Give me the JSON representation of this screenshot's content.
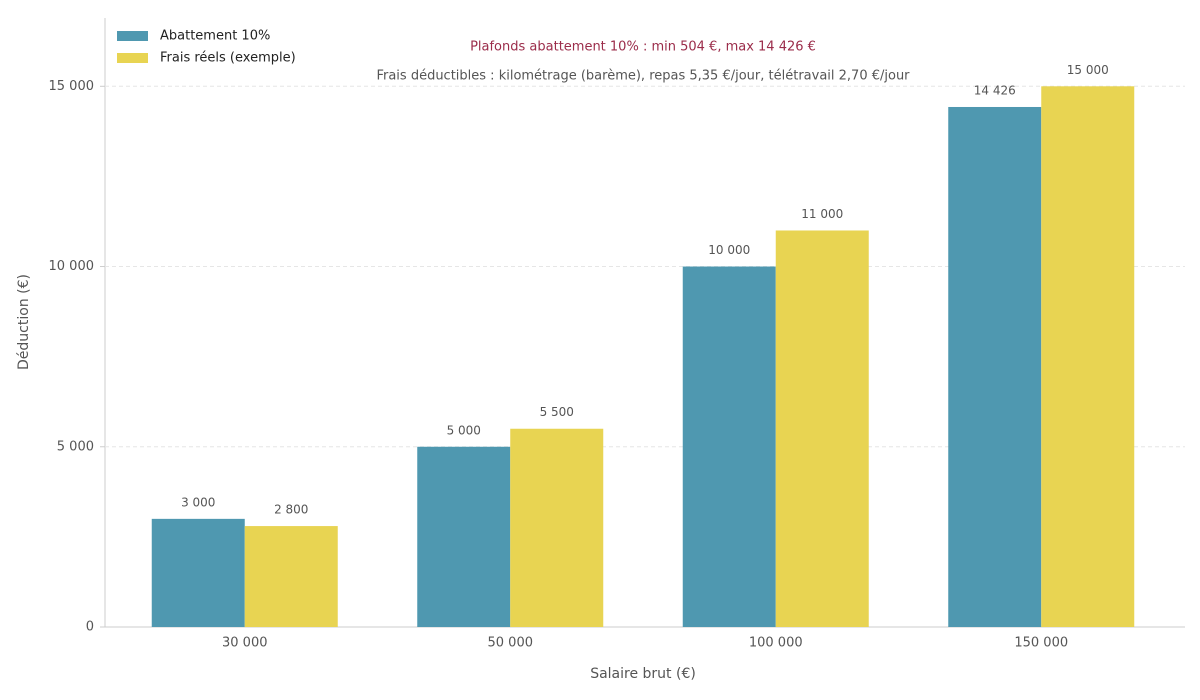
{
  "chart_data": {
    "type": "bar",
    "annotations": [
      {
        "text": "Plafonds abattement 10% : min 504 €, max 14 426 €",
        "color": "#9b2c4a"
      },
      {
        "text": "Frais déductibles : kilométrage (barème), repas 5,35 €/jour, télétravail 2,70 €/jour",
        "color": "#555555"
      }
    ],
    "x_label": "Salaire brut (€)",
    "y_label": "Déduction (€)",
    "categories": [
      "30 000",
      "50 000",
      "100 000",
      "150 000"
    ],
    "series": [
      {
        "name": "Abattement 10%",
        "color": "#4f98b0",
        "values": [
          3000,
          5000,
          10000,
          14426
        ],
        "value_labels": [
          "3 000",
          "5 000",
          "10 000",
          "14 426"
        ]
      },
      {
        "name": "Frais réels (exemple)",
        "color": "#e8d452",
        "values": [
          2800,
          5500,
          11000,
          15000
        ],
        "value_labels": [
          "2 800",
          "5 500",
          "11 000",
          "15 000"
        ]
      }
    ],
    "ylim": [
      0,
      16950
    ],
    "yticks": [
      0,
      {
        "value": 5000,
        "label": "5 000"
      },
      {
        "value": 10000,
        "label": "10 000"
      },
      {
        "value": 15000,
        "label": "15 000"
      }
    ],
    "grid": true,
    "legend": "upper left"
  }
}
